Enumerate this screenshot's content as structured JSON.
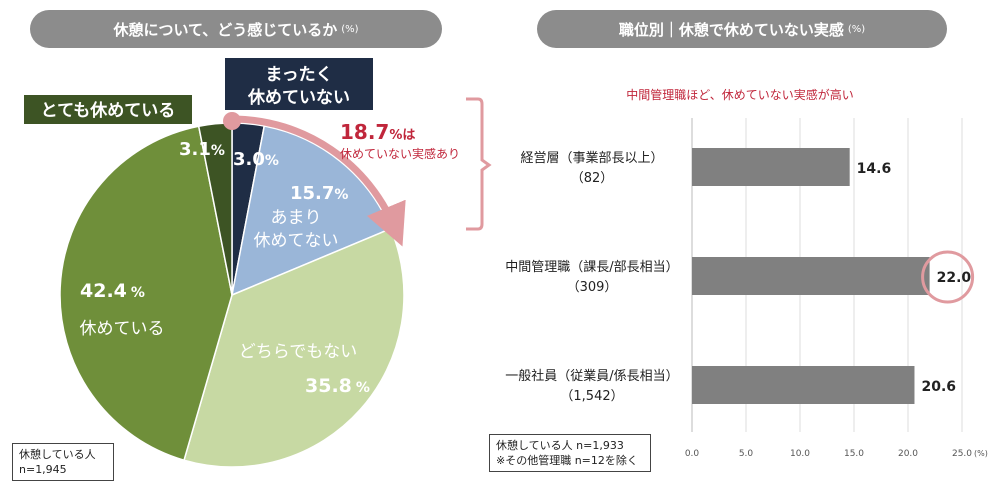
{
  "left": {
    "title": "休憩について、どう感じているか",
    "title_unit": "(%)",
    "note": [
      "休憩している人",
      "n=1,945"
    ]
  },
  "right": {
    "title": "職位別｜休憩で休めていない実感",
    "title_unit": "(%)",
    "subtitle": "中間管理職ほど、休めていない実感が高い",
    "note": [
      "休憩している人 n=1,933",
      "※その他管理職 n=12を除く"
    ]
  },
  "chart_data": [
    {
      "type": "pie",
      "title": "休憩について、どう感じているか",
      "unit": "(%)",
      "slices": [
        {
          "label": "まったく休めていない",
          "value": 3.0,
          "value_text": "3.0",
          "color": "#1f2d45"
        },
        {
          "label": "あまり休めてない",
          "value": 15.7,
          "value_text": "15.7",
          "color": "#9ab6d8"
        },
        {
          "label": "どちらでもない",
          "value": 35.8,
          "value_text": "35.8",
          "color": "#c7d9a3"
        },
        {
          "label": "休めている",
          "value": 42.4,
          "value_text": "42.4",
          "color": "#6f8f3a"
        },
        {
          "label": "とても休めている",
          "value": 3.1,
          "value_text": "3.1",
          "color": "#3d5424"
        }
      ],
      "labels": {
        "very_not_rested": [
          "まったく",
          "休めていない"
        ],
        "not_rested": [
          "あまり",
          "休めてない"
        ],
        "neutral": "どちらでもない",
        "rested": "休めている",
        "very_rested": "とても休めている",
        "percent_sign": "%"
      },
      "callout": {
        "value": "18.7",
        "unit": "%は",
        "text": "休めていない実感あり",
        "color": "#c0263b"
      },
      "note": "休憩している人 n=1,945"
    },
    {
      "type": "bar",
      "orientation": "horizontal",
      "title": "職位別｜休憩で休めていない実感",
      "unit": "(%)",
      "subtitle": "中間管理職ほど、休めていない実感が高い",
      "categories": [
        {
          "name": "経営層（事業部長以上）",
          "n": "（82）"
        },
        {
          "name": "中間管理職（課長/部長相当）",
          "n": "（309）"
        },
        {
          "name": "一般社員（従業員/係長相当）",
          "n": "（1,542）"
        }
      ],
      "values": [
        14.6,
        22.0,
        20.6
      ],
      "value_labels": [
        "14.6",
        "22.0",
        "20.6"
      ],
      "highlight_index": 1,
      "xlim": [
        0,
        25
      ],
      "ticks": [
        "0.0",
        "5.0",
        "10.0",
        "15.0",
        "20.0",
        "25.0"
      ],
      "tick_unit": "(%)",
      "bar_color": "#808080",
      "grid": true,
      "note": "休憩している人 n=1,933 ※その他管理職 n=12を除く"
    }
  ]
}
